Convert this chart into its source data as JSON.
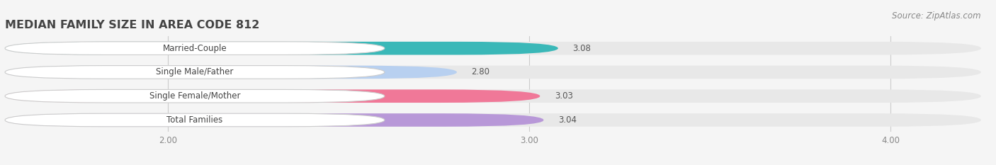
{
  "title": "MEDIAN FAMILY SIZE IN AREA CODE 812",
  "source": "Source: ZipAtlas.com",
  "categories": [
    "Married-Couple",
    "Single Male/Father",
    "Single Female/Mother",
    "Total Families"
  ],
  "values": [
    3.08,
    2.8,
    3.03,
    3.04
  ],
  "bar_colors": [
    "#3ab8b8",
    "#b8d0f0",
    "#f07898",
    "#b898d8"
  ],
  "bar_bg_color": "#e8e8e8",
  "xlim_min": 1.55,
  "xlim_max": 4.25,
  "xticks": [
    2.0,
    3.0,
    4.0
  ],
  "xtick_labels": [
    "2.00",
    "3.00",
    "4.00"
  ],
  "title_fontsize": 11.5,
  "label_fontsize": 8.5,
  "value_fontsize": 8.5,
  "source_fontsize": 8.5,
  "background_color": "#f5f5f5",
  "bar_height": 0.55,
  "bar_gap": 0.25
}
